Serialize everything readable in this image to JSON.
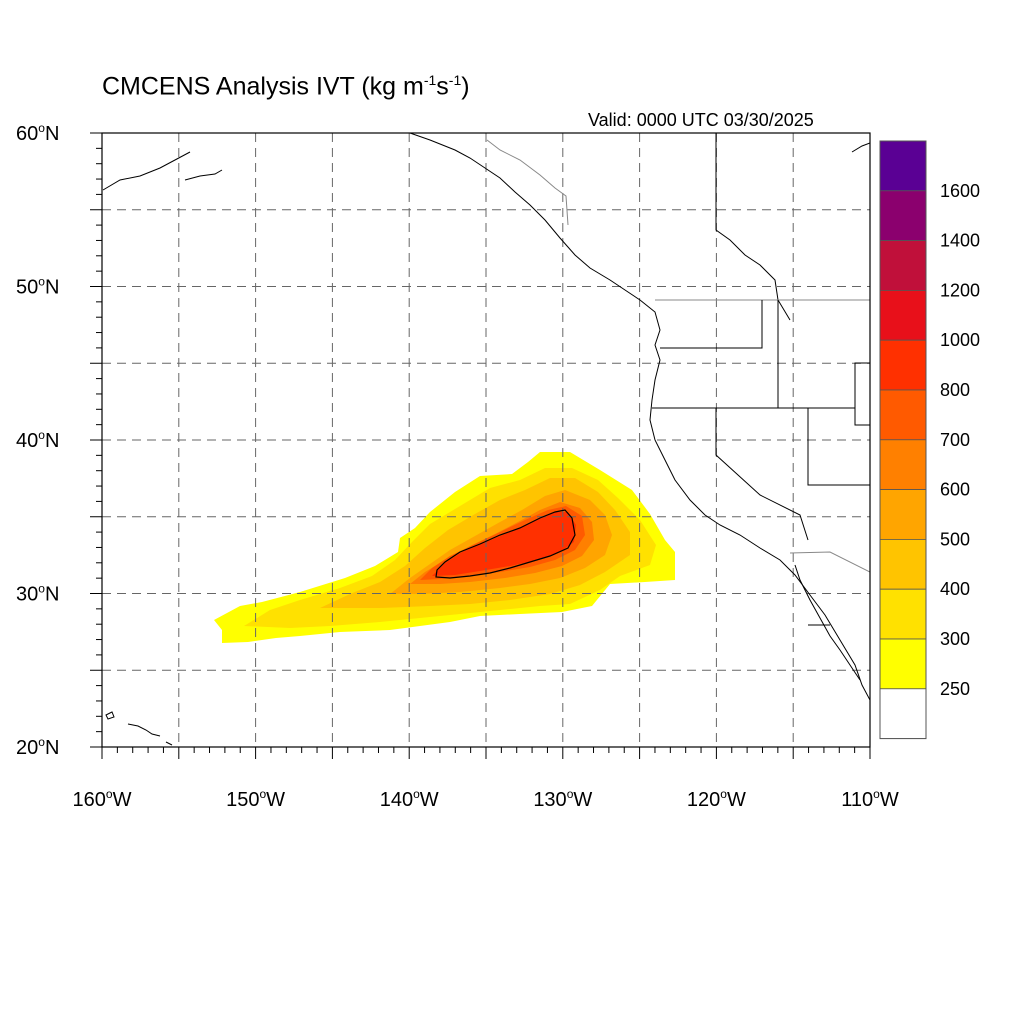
{
  "title": {
    "base": "CMCENS Analysis IVT (kg m",
    "exp1": "-1",
    "mid": "s",
    "exp2": "-1",
    "end": ")"
  },
  "valid": "Valid: 0000 UTC 03/30/2025",
  "map": {
    "lon_range": [
      -160,
      -110
    ],
    "lat_range": [
      20,
      60
    ],
    "lon_ticks": [
      {
        "deg": "160",
        "hem": "W"
      },
      {
        "deg": "150",
        "hem": "W"
      },
      {
        "deg": "140",
        "hem": "W"
      },
      {
        "deg": "130",
        "hem": "W"
      },
      {
        "deg": "120",
        "hem": "W"
      },
      {
        "deg": "110",
        "hem": "W"
      }
    ],
    "lat_ticks": [
      {
        "deg": "60",
        "hem": "N"
      },
      {
        "deg": "50",
        "hem": "N"
      },
      {
        "deg": "40",
        "hem": "N"
      },
      {
        "deg": "30",
        "hem": "N"
      },
      {
        "deg": "20",
        "hem": "N"
      }
    ],
    "gridlines": "dashed, every 5 degrees",
    "contour_level": 1000
  },
  "colorbar": {
    "labels": [
      "1600",
      "1400",
      "1200",
      "1000",
      "800",
      "700",
      "600",
      "500",
      "400",
      "300",
      "250"
    ],
    "colors": [
      "#5a0094",
      "#8b006e",
      "#c0103a",
      "#e8101a",
      "#ff3000",
      "#ff5a00",
      "#ff8000",
      "#ffa500",
      "#ffc400",
      "#ffe100",
      "#ffff00",
      "#ffffff"
    ]
  },
  "ivt_field": {
    "description_levels": [
      250,
      300,
      400,
      500,
      600,
      700,
      800,
      1000
    ]
  }
}
